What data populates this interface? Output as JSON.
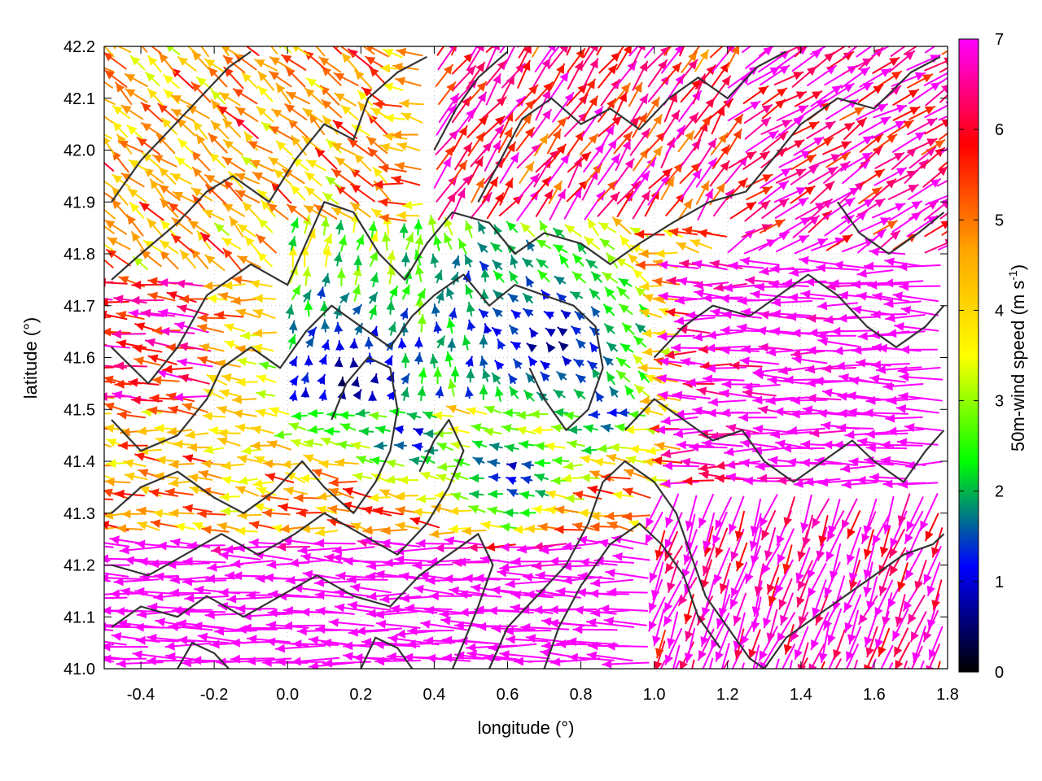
{
  "chart_data": {
    "type": "vector-field",
    "xlabel": "longitude (°)",
    "ylabel": "latitude (°)",
    "xlim": [
      -0.5,
      1.8
    ],
    "ylim": [
      41.0,
      42.2
    ],
    "x_ticks": [
      "-0.4",
      "-0.2",
      "0.0",
      "0.2",
      "0.4",
      "0.6",
      "0.8",
      "1.0",
      "1.2",
      "1.4",
      "1.6",
      "1.8"
    ],
    "x_tick_values": [
      -0.4,
      -0.2,
      0.0,
      0.2,
      0.4,
      0.6,
      0.8,
      1.0,
      1.2,
      1.4,
      1.6,
      1.8
    ],
    "y_ticks": [
      "41.0",
      "41.1",
      "41.2",
      "41.3",
      "41.4",
      "41.5",
      "41.6",
      "41.7",
      "41.8",
      "41.9",
      "42.0",
      "42.1",
      "42.2"
    ],
    "y_tick_values": [
      41.0,
      41.1,
      41.2,
      41.3,
      41.4,
      41.5,
      41.6,
      41.7,
      41.8,
      41.9,
      42.0,
      42.1,
      42.2
    ],
    "colorbar": {
      "label_prefix": "50m-wind speed (m s",
      "label_sup": "-1",
      "label_suffix": ")",
      "ticks": [
        "0",
        "1",
        "2",
        "3",
        "4",
        "5",
        "6",
        "7"
      ],
      "tick_values": [
        0,
        1,
        2,
        3,
        4,
        5,
        6,
        7
      ],
      "range": [
        0,
        7
      ],
      "colors": [
        "#000000",
        "#0000ff",
        "#00ff00",
        "#ffff00",
        "#ffa500",
        "#ff0000",
        "#ff00ff"
      ]
    },
    "grid": true,
    "contour_color": "#333333",
    "calm_zones": [
      {
        "lon": 0.35,
        "lat": 41.45,
        "r": 0.09
      },
      {
        "lon": 0.72,
        "lat": 41.62,
        "r": 0.18
      },
      {
        "lon": 0.15,
        "lat": 41.55,
        "r": 0.14
      },
      {
        "lon": 0.62,
        "lat": 41.38,
        "r": 0.12
      },
      {
        "lon": 0.88,
        "lat": 41.48,
        "r": 0.08
      }
    ],
    "contours": [
      [
        [
          -0.48,
          41.75
        ],
        [
          -0.4,
          41.8
        ],
        [
          -0.3,
          41.86
        ],
        [
          -0.22,
          41.92
        ],
        [
          -0.15,
          41.95
        ],
        [
          -0.05,
          41.9
        ],
        [
          0.02,
          41.98
        ],
        [
          0.1,
          42.05
        ],
        [
          0.18,
          42.02
        ],
        [
          0.22,
          42.1
        ],
        [
          0.3,
          42.15
        ],
        [
          0.38,
          42.18
        ]
      ],
      [
        [
          -0.48,
          41.62
        ],
        [
          -0.38,
          41.55
        ],
        [
          -0.3,
          41.62
        ],
        [
          -0.22,
          41.72
        ],
        [
          -0.1,
          41.78
        ],
        [
          0.0,
          41.74
        ],
        [
          0.05,
          41.82
        ],
        [
          0.1,
          41.9
        ],
        [
          0.18,
          41.88
        ],
        [
          0.25,
          41.8
        ],
        [
          0.32,
          41.75
        ],
        [
          0.38,
          41.82
        ],
        [
          0.45,
          41.88
        ],
        [
          0.55,
          41.86
        ],
        [
          0.62,
          41.8
        ],
        [
          0.7,
          41.84
        ],
        [
          0.8,
          41.82
        ],
        [
          0.88,
          41.78
        ],
        [
          0.96,
          41.82
        ],
        [
          1.05,
          41.86
        ],
        [
          1.15,
          41.9
        ],
        [
          1.25,
          41.92
        ],
        [
          1.32,
          41.98
        ],
        [
          1.4,
          42.05
        ],
        [
          1.5,
          42.1
        ],
        [
          1.6,
          42.08
        ],
        [
          1.7,
          42.15
        ],
        [
          1.78,
          42.18
        ]
      ],
      [
        [
          -0.48,
          41.48
        ],
        [
          -0.4,
          41.42
        ],
        [
          -0.3,
          41.45
        ],
        [
          -0.22,
          41.52
        ],
        [
          -0.18,
          41.58
        ],
        [
          -0.1,
          41.62
        ],
        [
          -0.02,
          41.58
        ],
        [
          0.05,
          41.65
        ],
        [
          0.12,
          41.7
        ],
        [
          0.2,
          41.66
        ],
        [
          0.28,
          41.62
        ],
        [
          0.34,
          41.68
        ],
        [
          0.4,
          41.72
        ],
        [
          0.48,
          41.76
        ],
        [
          0.55,
          41.7
        ],
        [
          0.62,
          41.74
        ],
        [
          0.7,
          41.72
        ],
        [
          0.78,
          41.7
        ],
        [
          0.84,
          41.66
        ],
        [
          0.86,
          41.58
        ],
        [
          0.82,
          41.5
        ],
        [
          0.76,
          41.46
        ],
        [
          0.7,
          41.52
        ],
        [
          0.66,
          41.58
        ]
      ],
      [
        [
          -0.48,
          41.3
        ],
        [
          -0.4,
          41.35
        ],
        [
          -0.3,
          41.38
        ],
        [
          -0.2,
          41.33
        ],
        [
          -0.12,
          41.3
        ],
        [
          -0.04,
          41.34
        ],
        [
          0.04,
          41.4
        ],
        [
          0.1,
          41.35
        ],
        [
          0.18,
          41.3
        ],
        [
          0.24,
          41.36
        ],
        [
          0.28,
          41.42
        ],
        [
          0.3,
          41.5
        ],
        [
          0.28,
          41.58
        ],
        [
          0.22,
          41.6
        ],
        [
          0.16,
          41.55
        ],
        [
          0.12,
          41.48
        ]
      ],
      [
        [
          -0.48,
          41.2
        ],
        [
          -0.38,
          41.18
        ],
        [
          -0.28,
          41.22
        ],
        [
          -0.18,
          41.26
        ],
        [
          -0.08,
          41.22
        ],
        [
          0.02,
          41.26
        ],
        [
          0.1,
          41.3
        ],
        [
          0.2,
          41.26
        ],
        [
          0.3,
          41.22
        ],
        [
          0.38,
          41.28
        ],
        [
          0.44,
          41.35
        ],
        [
          0.48,
          41.42
        ],
        [
          0.44,
          41.48
        ],
        [
          0.4,
          41.44
        ],
        [
          0.36,
          41.38
        ]
      ],
      [
        [
          -0.48,
          41.08
        ],
        [
          -0.4,
          41.12
        ],
        [
          -0.3,
          41.1
        ],
        [
          -0.22,
          41.14
        ],
        [
          -0.12,
          41.1
        ],
        [
          -0.02,
          41.14
        ],
        [
          0.08,
          41.18
        ],
        [
          0.18,
          41.14
        ],
        [
          0.28,
          41.12
        ],
        [
          0.36,
          41.18
        ],
        [
          0.44,
          41.22
        ],
        [
          0.52,
          41.26
        ],
        [
          0.56,
          41.2
        ],
        [
          0.52,
          41.12
        ],
        [
          0.48,
          41.05
        ],
        [
          0.45,
          41.0
        ]
      ],
      [
        [
          0.55,
          41.0
        ],
        [
          0.6,
          41.08
        ],
        [
          0.68,
          41.14
        ],
        [
          0.76,
          41.2
        ],
        [
          0.82,
          41.28
        ],
        [
          0.86,
          41.36
        ],
        [
          0.92,
          41.4
        ],
        [
          1.0,
          41.36
        ],
        [
          1.06,
          41.3
        ],
        [
          1.1,
          41.22
        ],
        [
          1.14,
          41.14
        ],
        [
          1.2,
          41.08
        ],
        [
          1.26,
          41.02
        ],
        [
          1.3,
          41.0
        ]
      ],
      [
        [
          0.7,
          41.0
        ],
        [
          0.74,
          41.08
        ],
        [
          0.8,
          41.16
        ],
        [
          0.88,
          41.24
        ],
        [
          0.96,
          41.28
        ],
        [
          1.02,
          41.24
        ],
        [
          1.08,
          41.18
        ],
        [
          1.12,
          41.1
        ],
        [
          1.18,
          41.04
        ]
      ],
      [
        [
          0.92,
          41.46
        ],
        [
          1.0,
          41.52
        ],
        [
          1.08,
          41.48
        ],
        [
          1.16,
          41.44
        ],
        [
          1.24,
          41.46
        ],
        [
          1.3,
          41.4
        ],
        [
          1.38,
          41.36
        ],
        [
          1.46,
          41.4
        ],
        [
          1.54,
          41.44
        ],
        [
          1.6,
          41.4
        ],
        [
          1.68,
          41.36
        ],
        [
          1.74,
          41.42
        ],
        [
          1.79,
          41.46
        ]
      ],
      [
        [
          1.0,
          41.6
        ],
        [
          1.08,
          41.66
        ],
        [
          1.16,
          41.7
        ],
        [
          1.26,
          41.68
        ],
        [
          1.34,
          41.72
        ],
        [
          1.42,
          41.76
        ],
        [
          1.5,
          41.72
        ],
        [
          1.58,
          41.66
        ],
        [
          1.66,
          41.62
        ],
        [
          1.74,
          41.66
        ],
        [
          1.79,
          41.7
        ]
      ],
      [
        [
          1.3,
          41.0
        ],
        [
          1.36,
          41.06
        ],
        [
          1.44,
          41.1
        ],
        [
          1.52,
          41.14
        ],
        [
          1.6,
          41.18
        ],
        [
          1.68,
          41.22
        ],
        [
          1.76,
          41.24
        ],
        [
          1.79,
          41.26
        ]
      ],
      [
        [
          0.52,
          41.9
        ],
        [
          0.58,
          41.98
        ],
        [
          0.64,
          42.06
        ],
        [
          0.72,
          42.1
        ],
        [
          0.8,
          42.05
        ],
        [
          0.88,
          42.08
        ],
        [
          0.96,
          42.04
        ],
        [
          1.04,
          42.1
        ],
        [
          1.12,
          42.14
        ],
        [
          1.2,
          42.1
        ],
        [
          1.28,
          42.16
        ],
        [
          1.36,
          42.19
        ]
      ],
      [
        [
          0.4,
          42.0
        ],
        [
          0.46,
          42.08
        ],
        [
          0.52,
          42.14
        ],
        [
          0.6,
          42.19
        ]
      ],
      [
        [
          -0.48,
          41.9
        ],
        [
          -0.4,
          41.98
        ],
        [
          -0.32,
          42.04
        ],
        [
          -0.24,
          42.1
        ],
        [
          -0.16,
          42.16
        ],
        [
          -0.1,
          42.19
        ]
      ],
      [
        [
          1.5,
          41.9
        ],
        [
          1.56,
          41.84
        ],
        [
          1.64,
          41.8
        ],
        [
          1.72,
          41.84
        ],
        [
          1.79,
          41.88
        ]
      ],
      [
        [
          0.2,
          41.0
        ],
        [
          0.24,
          41.06
        ],
        [
          0.3,
          41.04
        ],
        [
          0.34,
          41.0
        ]
      ],
      [
        [
          -0.3,
          41.0
        ],
        [
          -0.26,
          41.05
        ],
        [
          -0.2,
          41.03
        ],
        [
          -0.16,
          41.0
        ]
      ]
    ]
  }
}
